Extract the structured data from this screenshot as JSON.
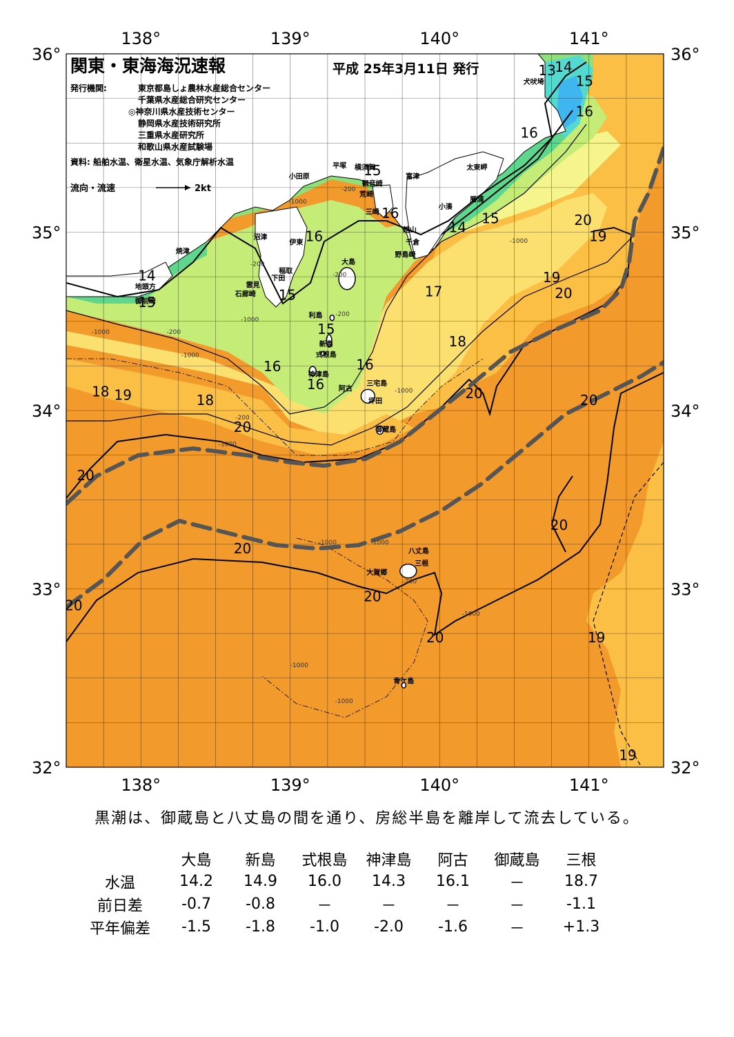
{
  "header": {
    "title": "関東・東海海況速報",
    "date": "平成 25年3月11日 発行",
    "publisher_label": "発行機関:",
    "publishers": [
      "東京都島しょ農林水産総合センター",
      "千葉県水産総合研究センター",
      "◎神奈川県水産技術センター",
      "静岡県水産技術研究所",
      "三重県水産研究所",
      "和歌山県水産試験場"
    ],
    "sources": "資料: 船舶水温、衛星水温、気象庁解析水温",
    "flow_legend": "流向・流速",
    "flow_unit": "2kt"
  },
  "axes": {
    "lon_labels": [
      "138°",
      "139°",
      "140°",
      "141°"
    ],
    "lat_labels": [
      "36°",
      "35°",
      "34°",
      "33°",
      "32°"
    ],
    "lon_range": [
      137.5,
      141.5
    ],
    "lat_range": [
      32,
      36
    ]
  },
  "colors": {
    "sea_20_plus": "#f39a2c",
    "sea_19": "#fbbf45",
    "sea_18": "#fbe070",
    "sea_17": "#f6f48c",
    "sea_16": "#c6ec78",
    "sea_15": "#8fe07a",
    "sea_14": "#5fd68e",
    "sea_13": "#54d9d0",
    "sea_12": "#3fb6f0",
    "land": "#ffffff",
    "kuroshio_axis": "#555555"
  },
  "isotherm_labels": [
    {
      "text": "13",
      "lon": 140.72,
      "lat": 35.88
    },
    {
      "text": "14",
      "lon": 140.83,
      "lat": 35.9
    },
    {
      "text": "15",
      "lon": 140.97,
      "lat": 35.82
    },
    {
      "text": "16",
      "lon": 140.97,
      "lat": 35.65
    },
    {
      "text": "16",
      "lon": 140.6,
      "lat": 35.53
    },
    {
      "text": "15",
      "lon": 140.34,
      "lat": 35.05
    },
    {
      "text": "14",
      "lon": 140.12,
      "lat": 35.0
    },
    {
      "text": "16",
      "lon": 139.67,
      "lat": 35.08
    },
    {
      "text": "15",
      "lon": 139.55,
      "lat": 35.32
    },
    {
      "text": "16",
      "lon": 139.16,
      "lat": 34.95
    },
    {
      "text": "14",
      "lon": 138.04,
      "lat": 34.73
    },
    {
      "text": "15",
      "lon": 138.04,
      "lat": 34.58
    },
    {
      "text": "15",
      "lon": 138.98,
      "lat": 34.62
    },
    {
      "text": "17",
      "lon": 139.96,
      "lat": 34.64
    },
    {
      "text": "20",
      "lon": 140.96,
      "lat": 35.04
    },
    {
      "text": "19",
      "lon": 141.06,
      "lat": 34.95
    },
    {
      "text": "19",
      "lon": 140.75,
      "lat": 34.72
    },
    {
      "text": "20",
      "lon": 140.83,
      "lat": 34.63
    },
    {
      "text": "15",
      "lon": 139.24,
      "lat": 34.43
    },
    {
      "text": "18",
      "lon": 140.12,
      "lat": 34.36
    },
    {
      "text": "16",
      "lon": 138.88,
      "lat": 34.22
    },
    {
      "text": "16",
      "lon": 139.5,
      "lat": 34.23
    },
    {
      "text": "16",
      "lon": 139.17,
      "lat": 34.12
    },
    {
      "text": "20",
      "lon": 140.23,
      "lat": 34.07
    },
    {
      "text": "18",
      "lon": 137.73,
      "lat": 34.08
    },
    {
      "text": "19",
      "lon": 137.88,
      "lat": 34.06
    },
    {
      "text": "18",
      "lon": 138.43,
      "lat": 34.03
    },
    {
      "text": "20",
      "lon": 141.0,
      "lat": 34.03
    },
    {
      "text": "20",
      "lon": 138.68,
      "lat": 33.88
    },
    {
      "text": "20",
      "lon": 137.63,
      "lat": 33.61
    },
    {
      "text": "20",
      "lon": 140.8,
      "lat": 33.33
    },
    {
      "text": "20",
      "lon": 138.68,
      "lat": 33.2
    },
    {
      "text": "20",
      "lon": 139.55,
      "lat": 32.93
    },
    {
      "text": "20",
      "lon": 137.55,
      "lat": 32.88
    },
    {
      "text": "20",
      "lon": 139.97,
      "lat": 32.7
    },
    {
      "text": "19",
      "lon": 141.05,
      "lat": 32.7
    },
    {
      "text": "19",
      "lon": 141.26,
      "lat": 32.04
    }
  ],
  "place_labels": [
    {
      "text": "犬吠埼",
      "lon": 140.63,
      "lat": 35.83
    },
    {
      "text": "太東岬",
      "lon": 140.25,
      "lat": 35.35
    },
    {
      "text": "勝浦",
      "lon": 140.25,
      "lat": 35.17
    },
    {
      "text": "小湊",
      "lon": 140.04,
      "lat": 35.13
    },
    {
      "text": "富津",
      "lon": 139.82,
      "lat": 35.3
    },
    {
      "text": "横須賀",
      "lon": 139.5,
      "lat": 35.35
    },
    {
      "text": "平塚",
      "lon": 139.33,
      "lat": 35.36
    },
    {
      "text": "小田原",
      "lon": 139.06,
      "lat": 35.3
    },
    {
      "text": "観音崎",
      "lon": 139.55,
      "lat": 35.26
    },
    {
      "text": "荒崎",
      "lon": 139.51,
      "lat": 35.2
    },
    {
      "text": "三崎",
      "lon": 139.55,
      "lat": 35.1
    },
    {
      "text": "館山",
      "lon": 139.8,
      "lat": 35.0
    },
    {
      "text": "千倉",
      "lon": 139.82,
      "lat": 34.93
    },
    {
      "text": "野島崎",
      "lon": 139.77,
      "lat": 34.86
    },
    {
      "text": "沼津",
      "lon": 138.8,
      "lat": 34.96
    },
    {
      "text": "伊東",
      "lon": 139.04,
      "lat": 34.93
    },
    {
      "text": "焼津",
      "lon": 138.28,
      "lat": 34.88
    },
    {
      "text": "稲取",
      "lon": 138.97,
      "lat": 34.77
    },
    {
      "text": "下田",
      "lon": 138.92,
      "lat": 34.73
    },
    {
      "text": "雲見",
      "lon": 138.75,
      "lat": 34.69
    },
    {
      "text": "石廊崎",
      "lon": 138.7,
      "lat": 34.64
    },
    {
      "text": "地頭方",
      "lon": 138.03,
      "lat": 34.68
    },
    {
      "text": "御前崎",
      "lon": 138.03,
      "lat": 34.6
    },
    {
      "text": "大島",
      "lon": 139.39,
      "lat": 34.82
    },
    {
      "text": "利島",
      "lon": 139.17,
      "lat": 34.52
    },
    {
      "text": "新島",
      "lon": 139.24,
      "lat": 34.36
    },
    {
      "text": "式根島",
      "lon": 139.24,
      "lat": 34.3
    },
    {
      "text": "神津島",
      "lon": 139.19,
      "lat": 34.19
    },
    {
      "text": "阿古",
      "lon": 139.37,
      "lat": 34.11
    },
    {
      "text": "三宅島",
      "lon": 139.58,
      "lat": 34.14
    },
    {
      "text": "坪田",
      "lon": 139.57,
      "lat": 34.04
    },
    {
      "text": "御蔵島",
      "lon": 139.64,
      "lat": 33.88
    },
    {
      "text": "八丈島",
      "lon": 139.86,
      "lat": 33.2
    },
    {
      "text": "三根",
      "lon": 139.88,
      "lat": 33.13
    },
    {
      "text": "大賀郷",
      "lon": 139.58,
      "lat": 33.08
    },
    {
      "text": "青ケ島",
      "lon": 139.76,
      "lat": 32.47
    }
  ],
  "depth_labels": [
    {
      "text": "-200",
      "lon": 139.39,
      "lat": 35.23
    },
    {
      "text": "-1000",
      "lon": 139.05,
      "lat": 35.16
    },
    {
      "text": "-200",
      "lon": 138.78,
      "lat": 34.81
    },
    {
      "text": "-1000",
      "lon": 138.73,
      "lat": 34.5
    },
    {
      "text": "-200",
      "lon": 139.33,
      "lat": 34.75
    },
    {
      "text": "-200",
      "lon": 139.35,
      "lat": 34.53
    },
    {
      "text": "-200",
      "lon": 138.22,
      "lat": 34.43
    },
    {
      "text": "-1000",
      "lon": 137.73,
      "lat": 34.43
    },
    {
      "text": "-1000",
      "lon": 138.33,
      "lat": 34.3
    },
    {
      "text": "-1000",
      "lon": 139.76,
      "lat": 34.1
    },
    {
      "text": "-200",
      "lon": 138.68,
      "lat": 33.95
    },
    {
      "text": "-1000",
      "lon": 138.58,
      "lat": 33.8
    },
    {
      "text": "-1000",
      "lon": 140.53,
      "lat": 34.94
    },
    {
      "text": "-1000",
      "lon": 139.25,
      "lat": 33.25
    },
    {
      "text": "-1000",
      "lon": 139.6,
      "lat": 33.25
    },
    {
      "text": "-200",
      "lon": 139.8,
      "lat": 33.03
    },
    {
      "text": "-1000",
      "lon": 140.21,
      "lat": 32.85
    },
    {
      "text": "-1000",
      "lon": 139.06,
      "lat": 32.56
    },
    {
      "text": "-1000",
      "lon": 139.36,
      "lat": 32.36
    }
  ],
  "summary": "黒潮は、御蔵島と八丈島の間を通り、房総半島を離岸して流去している。",
  "table": {
    "columns": [
      "大島",
      "新島",
      "式根島",
      "神津島",
      "阿古",
      "御蔵島",
      "三根"
    ],
    "rows": [
      {
        "label": "水温",
        "values": [
          "14.2",
          "14.9",
          "16.0",
          "14.3",
          "16.1",
          "－",
          "18.7"
        ]
      },
      {
        "label": "前日差",
        "values": [
          "-0.7",
          "-0.8",
          "－",
          "－",
          "－",
          "－",
          "-1.1"
        ]
      },
      {
        "label": "平年偏差",
        "values": [
          "-1.5",
          "-1.8",
          "-1.0",
          "-2.0",
          "-1.6",
          "－",
          "+1.3"
        ]
      }
    ]
  }
}
